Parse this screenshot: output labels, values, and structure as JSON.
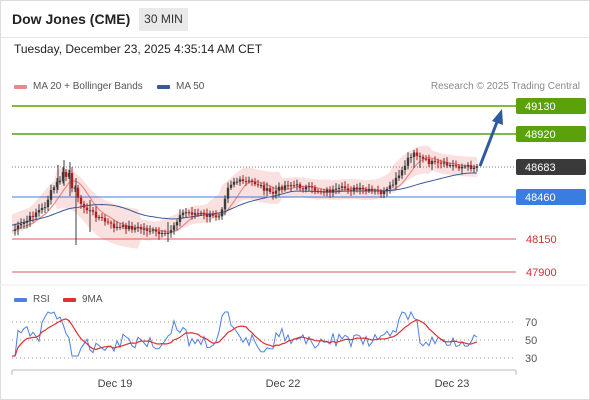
{
  "header": {
    "title": "Dow Jones (CME)",
    "timeframe": "30 MIN"
  },
  "datetime": "Tuesday, December 23, 2025 4:35:14 AM CET",
  "legend": {
    "ma20_label": "MA 20 + Bollinger Bands",
    "ma50_label": "MA 50",
    "credit": "Research © 2025 Trading Central"
  },
  "colors": {
    "up_level": "#5aa10a",
    "last_price": "#3a3a3a",
    "pivot": "#3a7de0",
    "down_level": "#d43030",
    "ma20": "#ee8888",
    "ma50": "#3b5998",
    "bollinger": "#f9d5d5",
    "rsi": "#4f7fe0",
    "rsi_ma": "#e03030",
    "arrow": "#2f5aa0",
    "candle_up": "#3c3c3c",
    "candle_down": "#b01e1e"
  },
  "levels": [
    {
      "label": "49130",
      "type": "resistance"
    },
    {
      "label": "48920",
      "type": "resistance"
    },
    {
      "label": "48683",
      "type": "last"
    },
    {
      "label": "48460",
      "type": "pivot"
    },
    {
      "label": "48150",
      "type": "support"
    },
    {
      "label": "47900",
      "type": "support"
    }
  ],
  "rsi_panel": {
    "rsi_label": "RSI",
    "ma_label": "9MA",
    "ticks": [
      "70",
      "50",
      "30"
    ]
  },
  "x_axis": {
    "labels": [
      "Dec 19",
      "Dec 22",
      "Dec 23"
    ]
  }
}
